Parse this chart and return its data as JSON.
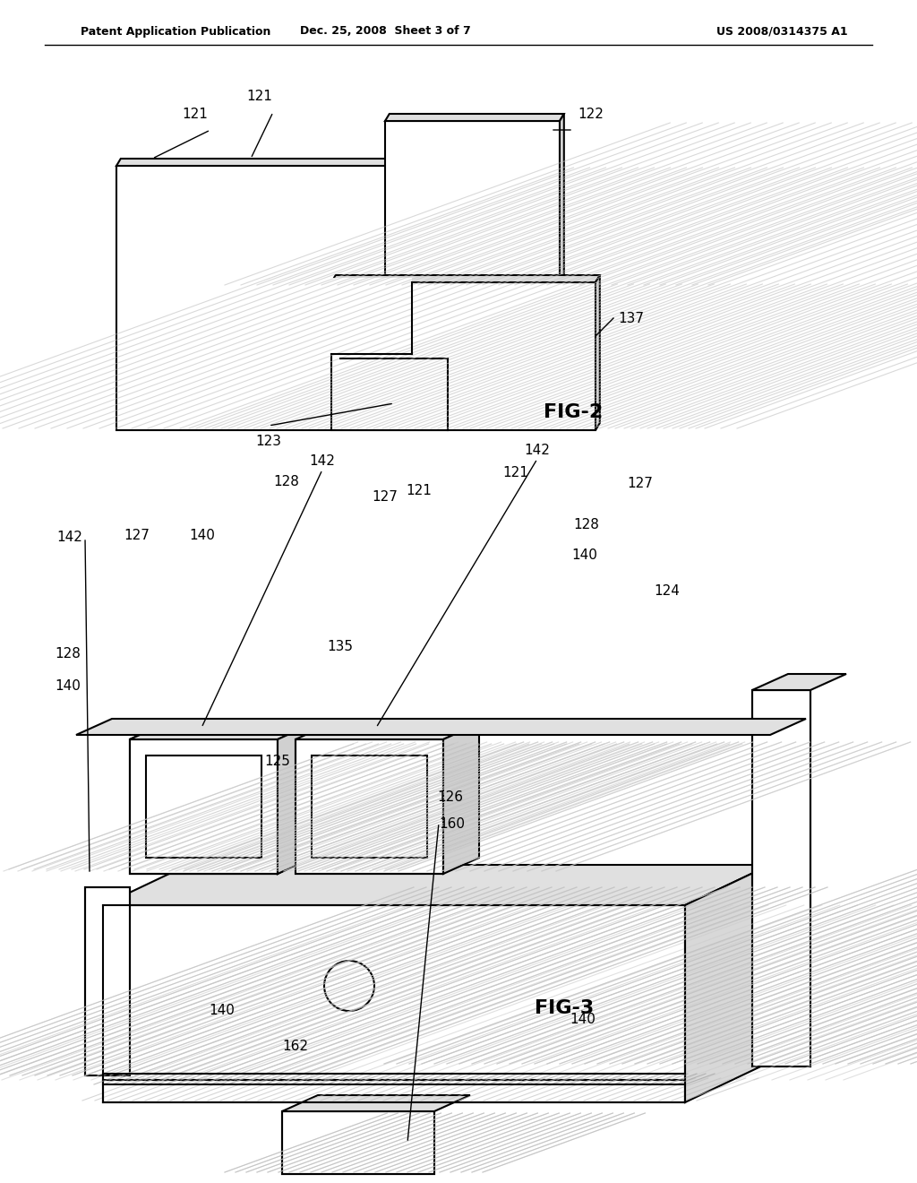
{
  "header_left": "Patent Application Publication",
  "header_mid": "Dec. 25, 2008  Sheet 3 of 7",
  "header_right": "US 2008/0314375 A1",
  "fig2_label": "FIG-2",
  "fig3_label": "FIG-3",
  "background": "#ffffff",
  "line_color": "#000000",
  "shadow_color": "#cccccc",
  "header_fontsize": 9,
  "label_fontsize": 11,
  "figlabel_fontsize": 16
}
